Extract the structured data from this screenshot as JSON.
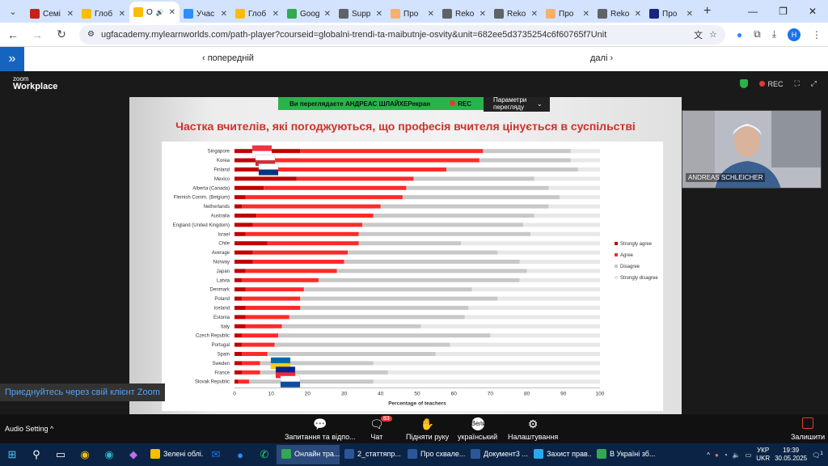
{
  "browser": {
    "tabs": [
      {
        "label": "Семі",
        "color": "#c5221f"
      },
      {
        "label": "Глоб",
        "color": "#fbbc04"
      },
      {
        "label": "О",
        "color": "#fbbc04",
        "active": true
      },
      {
        "label": "Учас",
        "color": "#2d8cff"
      },
      {
        "label": "Глоб",
        "color": "#fbbc04"
      },
      {
        "label": "Goog",
        "color": "#34a853"
      },
      {
        "label": "Supp",
        "color": "#5f6368"
      },
      {
        "label": "Про",
        "color": "#f6b26b"
      },
      {
        "label": "Reko",
        "color": "#5f6368"
      },
      {
        "label": "Reko",
        "color": "#5f6368"
      },
      {
        "label": "Про",
        "color": "#f6b26b"
      },
      {
        "label": "Reko",
        "color": "#5f6368"
      },
      {
        "label": "Про",
        "color": "#1a237e"
      }
    ],
    "new_tab": "+",
    "url": "ugfacademy.mylearnworlds.com/path-player?courseid=globalni-trendi-ta-maibutnje-osvity&unit=682ee5d3735254c6f60765f7Unit",
    "profile_initial": "H"
  },
  "course_nav": {
    "prev": "‹ попередній",
    "next": "далі ›"
  },
  "zoom": {
    "brand_small": "zoom",
    "brand": "Workplace",
    "rec": "REC",
    "viewing_banner": "Ви переглядаєте АНДРЕАС ШЛАЙХЕРекран",
    "viewing_rec": "REC",
    "view_options": "Параметри перегляду",
    "participant_name": "ANDREAS SCHLEICHER",
    "join_text": "Приєднуйтесь через свій клієнт Zoom",
    "audio_setting": "Audio Setting",
    "buttons": [
      {
        "label": "Запитання та відпо...",
        "icon": "qa-icon"
      },
      {
        "label": "Чат",
        "icon": "chat-icon",
        "badge": "83"
      },
      {
        "label": "Підняти руку",
        "icon": "hand-icon"
      },
      {
        "label": "український",
        "icon": "language-icon",
        "icon_text": "Вели"
      },
      {
        "label": "Налаштування",
        "icon": "gear-icon"
      },
      {
        "label": "Залишити",
        "icon": "leave-icon"
      }
    ]
  },
  "slide": {
    "title": "Частка вчителів, які погоджуються, що професія вчителя цінується в суспільстві"
  },
  "chart_data": {
    "type": "bar",
    "orientation": "horizontal",
    "stacked": true,
    "categories": [
      "Singapore",
      "Korea",
      "Finland",
      "Mexico",
      "Alberta (Canada)",
      "Flemish Comm. (Belgium)",
      "Netherlands",
      "Australia",
      "England (United Kingdom)",
      "Israel",
      "Chile",
      "Average",
      "Norway",
      "Japan",
      "Latvia",
      "Denmark",
      "Poland",
      "Iceland",
      "Estonia",
      "Italy",
      "Czech Republic",
      "Portugal",
      "Spain",
      "Sweden",
      "France",
      "Slovak Republic"
    ],
    "series": [
      {
        "name": "Strongly agree",
        "color": "#c00000",
        "values": [
          18,
          8,
          10,
          17,
          8,
          3,
          2,
          6,
          5,
          3,
          9,
          5,
          5,
          3,
          2,
          3,
          2,
          3,
          3,
          3,
          2,
          2,
          2,
          2,
          2,
          1
        ]
      },
      {
        "name": "Agree",
        "color": "#ff2a2a",
        "values": [
          50,
          59,
          48,
          32,
          39,
          43,
          38,
          32,
          30,
          31,
          25,
          26,
          25,
          25,
          21,
          16,
          16,
          15,
          12,
          10,
          10,
          9,
          7,
          5,
          5,
          3
        ]
      },
      {
        "name": "Disagree",
        "color": "#c8c8c8",
        "values": [
          24,
          25,
          36,
          33,
          39,
          43,
          46,
          44,
          44,
          47,
          28,
          41,
          48,
          52,
          55,
          46,
          54,
          46,
          48,
          38,
          58,
          48,
          46,
          31,
          35,
          34
        ]
      },
      {
        "name": "Strongly disagree",
        "color": "#e8e8e8",
        "values": [
          8,
          8,
          6,
          18,
          14,
          11,
          14,
          18,
          21,
          19,
          38,
          28,
          22,
          20,
          22,
          35,
          28,
          36,
          37,
          49,
          30,
          41,
          45,
          62,
          58,
          62
        ]
      }
    ],
    "xlabel": "Percentage of teachers",
    "ylabel": "",
    "xlim": [
      0,
      100
    ],
    "xticks": [
      0,
      10,
      20,
      30,
      40,
      50,
      60,
      70,
      80,
      90,
      100
    ],
    "legend_position": "right",
    "grid": false
  },
  "taskbar": {
    "apps": [
      {
        "label": "Зелені облі...",
        "color": "#fbbc04"
      },
      {
        "label": "Онлайн тра...",
        "color": "#34a853",
        "active": true
      },
      {
        "label": "2_статтяпр...",
        "color": "#2b579a"
      },
      {
        "label": "Про схвале...",
        "color": "#2b579a"
      },
      {
        "label": "Документ3 ...",
        "color": "#2b579a"
      },
      {
        "label": "Захист прав...",
        "color": "#29a9eb"
      },
      {
        "label": "В Україні зб...",
        "color": "#34a853"
      }
    ],
    "lang": "УКР",
    "lang2": "UKR",
    "time": "19:39",
    "date": "30.05.2025",
    "notif": "1"
  }
}
